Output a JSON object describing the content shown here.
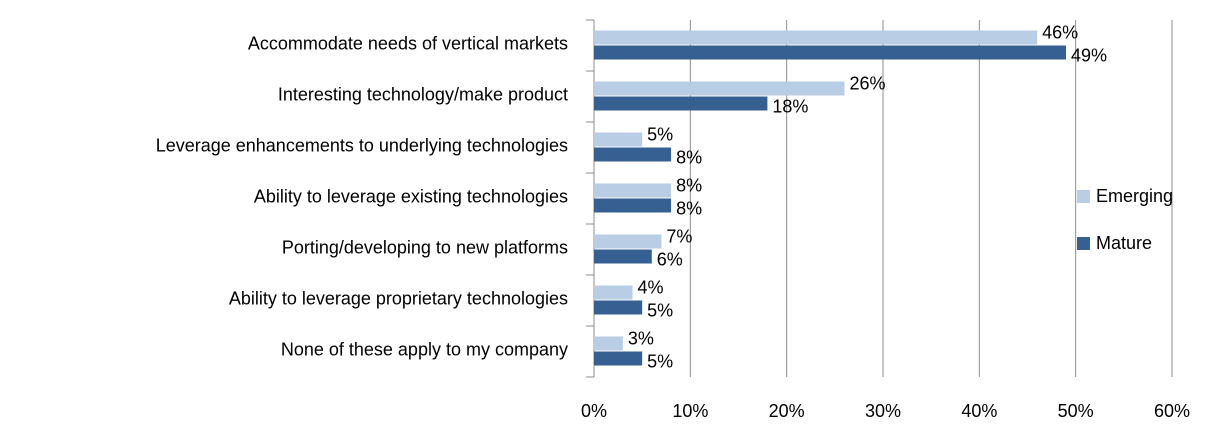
{
  "chart_data": {
    "type": "bar",
    "orientation": "horizontal",
    "categories": [
      "Accommodate needs of vertical markets",
      "Interesting technology/make product",
      "Leverage enhancements to underlying technologies",
      "Ability to leverage existing technologies",
      "Porting/developing to new platforms",
      "Ability to leverage proprietary technologies",
      "None of these apply to my company"
    ],
    "series": [
      {
        "name": "Emerging",
        "color": "#b9cde5",
        "values": [
          46,
          26,
          5,
          8,
          7,
          4,
          3
        ],
        "value_labels": [
          "46%",
          "26%",
          "5%",
          "8%",
          "7%",
          "4%",
          "3%"
        ]
      },
      {
        "name": "Mature",
        "color": "#376092",
        "values": [
          49,
          18,
          8,
          8,
          6,
          5,
          5
        ],
        "value_labels": [
          "49%",
          "18%",
          "8%",
          "8%",
          "6%",
          "5%",
          "5%"
        ]
      }
    ],
    "xlim": [
      0,
      60
    ],
    "xticks": [
      {
        "value": 0,
        "label": "0%"
      },
      {
        "value": 10,
        "label": "10%"
      },
      {
        "value": 20,
        "label": "20%"
      },
      {
        "value": 30,
        "label": "30%"
      },
      {
        "value": 40,
        "label": "40%"
      },
      {
        "value": 50,
        "label": "50%"
      },
      {
        "value": 60,
        "label": "60%"
      }
    ],
    "grid": true,
    "legend": "right"
  }
}
